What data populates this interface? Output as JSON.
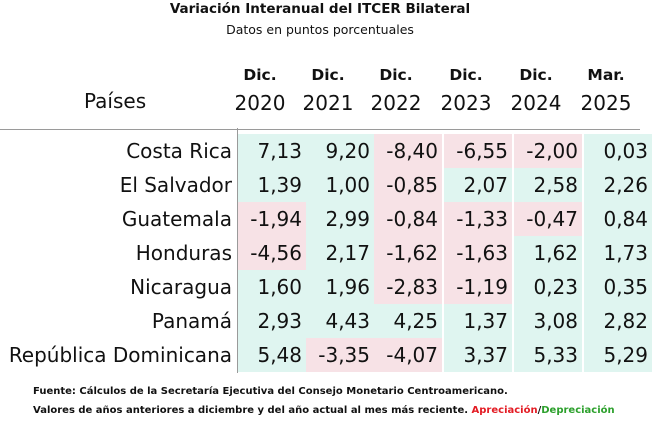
{
  "title": "Variación Interanual del ITCER Bilateral",
  "subtitle": "Datos en puntos porcentuales",
  "chart_data": {
    "type": "table",
    "header_label": "Países",
    "columns": [
      {
        "top": "Dic.",
        "bottom": "2020"
      },
      {
        "top": "Dic.",
        "bottom": "2021"
      },
      {
        "top": "Dic.",
        "bottom": "2022"
      },
      {
        "top": "Dic.",
        "bottom": "2023"
      },
      {
        "top": "Dic.",
        "bottom": "2024"
      },
      {
        "top": "Mar.",
        "bottom": "2025"
      }
    ],
    "rows": [
      {
        "country": "Costa Rica",
        "values": [
          "7,13",
          "9,20",
          "-8,40",
          "-6,55",
          "-2,00",
          "0,03"
        ]
      },
      {
        "country": "El Salvador",
        "values": [
          "1,39",
          "1,00",
          "-0,85",
          "2,07",
          "2,58",
          "2,26"
        ]
      },
      {
        "country": "Guatemala",
        "values": [
          "-1,94",
          "2,99",
          "-0,84",
          "-1,33",
          "-0,47",
          "0,84"
        ]
      },
      {
        "country": "Honduras",
        "values": [
          "-4,56",
          "2,17",
          "-1,62",
          "-1,63",
          "1,62",
          "1,73"
        ]
      },
      {
        "country": "Nicaragua",
        "values": [
          "1,60",
          "1,96",
          "-2,83",
          "-1,19",
          "0,23",
          "0,35"
        ]
      },
      {
        "country": "Panamá",
        "values": [
          "2,93",
          "4,43",
          "4,25",
          "1,37",
          "3,08",
          "2,82"
        ]
      },
      {
        "country": "República Dominicana",
        "values": [
          "5,48",
          "-3,35",
          "-4,07",
          "3,37",
          "5,33",
          "5,29"
        ]
      }
    ],
    "cell_colors": {
      "positive": "#dff5f0",
      "negative": "#f7e2e6"
    }
  },
  "footnotes": {
    "source": "Fuente: Cálculos de la Secretaría Ejecutiva del Consejo Monetario Centroamericano.",
    "note": "Valores de años anteriores a diciembre y del año actual al mes más reciente.",
    "appreciation": "Apreciación",
    "separator": "/",
    "depreciation": "Depreciación",
    "appreciation_color": "#e31b23",
    "depreciation_color": "#2ca02c"
  }
}
